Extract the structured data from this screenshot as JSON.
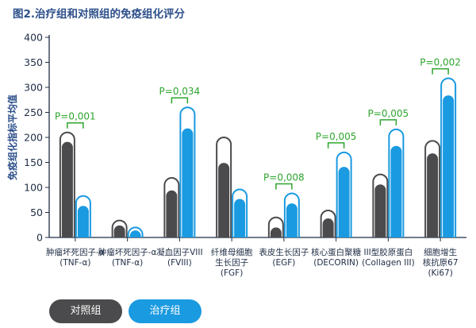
{
  "chart_data": {
    "type": "bar",
    "title": "图2.治疗组和对照组的免疫组化评分",
    "ylabel": "免疫组化指标平均值",
    "ylim": [
      0,
      400
    ],
    "yticks": [
      0,
      50,
      100,
      150,
      200,
      250,
      300,
      350,
      400
    ],
    "categories": [
      {
        "line1": "肿瘤坏死因子-α",
        "line2": "(TNF-α)",
        "line3": ""
      },
      {
        "line1": "肿瘤坏死因子-α",
        "line2": "(TNF-α)",
        "line3": ""
      },
      {
        "line1": "凝血因子VIII",
        "line2": "(FVIII)",
        "line3": ""
      },
      {
        "line1": "纤维母细胞",
        "line2": "生长因子",
        "line3": "(FGF)"
      },
      {
        "line1": "表皮生长因子",
        "line2": "(EGF)",
        "line3": ""
      },
      {
        "line1": "核心蛋白聚糖",
        "line2": "(DECORIN)",
        "line3": ""
      },
      {
        "line1": "III型胶原蛋白",
        "line2": "(Collagen III)",
        "line3": ""
      },
      {
        "line1": "细胞增生",
        "line2": "核抗原67",
        "line3": "(Ki67)"
      }
    ],
    "series": [
      {
        "name": "对照组",
        "color": "#4b4b4d",
        "values": [
          191,
          24,
          94,
          149,
          20,
          38,
          106,
          168
        ],
        "range_max": [
          210,
          34,
          119,
          200,
          40,
          54,
          126,
          193
        ]
      },
      {
        "name": "治疗组",
        "color": "#1a9ae0",
        "values": [
          63,
          14,
          218,
          77,
          68,
          141,
          183,
          284
        ],
        "range_max": [
          83,
          20,
          260,
          96,
          88,
          170,
          216,
          318
        ]
      }
    ],
    "annotations": [
      {
        "index": 0,
        "text": "P=0,001"
      },
      {
        "index": 2,
        "text": "P=0,034"
      },
      {
        "index": 4,
        "text": "P=0,008"
      },
      {
        "index": 5,
        "text": "P=0,005"
      },
      {
        "index": 6,
        "text": "P=0,005"
      },
      {
        "index": 7,
        "text": "P=0,002"
      }
    ],
    "annotation_color": "#2ea52e",
    "grid": false
  },
  "legend": {
    "control_label": "对照组",
    "treatment_label": "治疗组"
  }
}
